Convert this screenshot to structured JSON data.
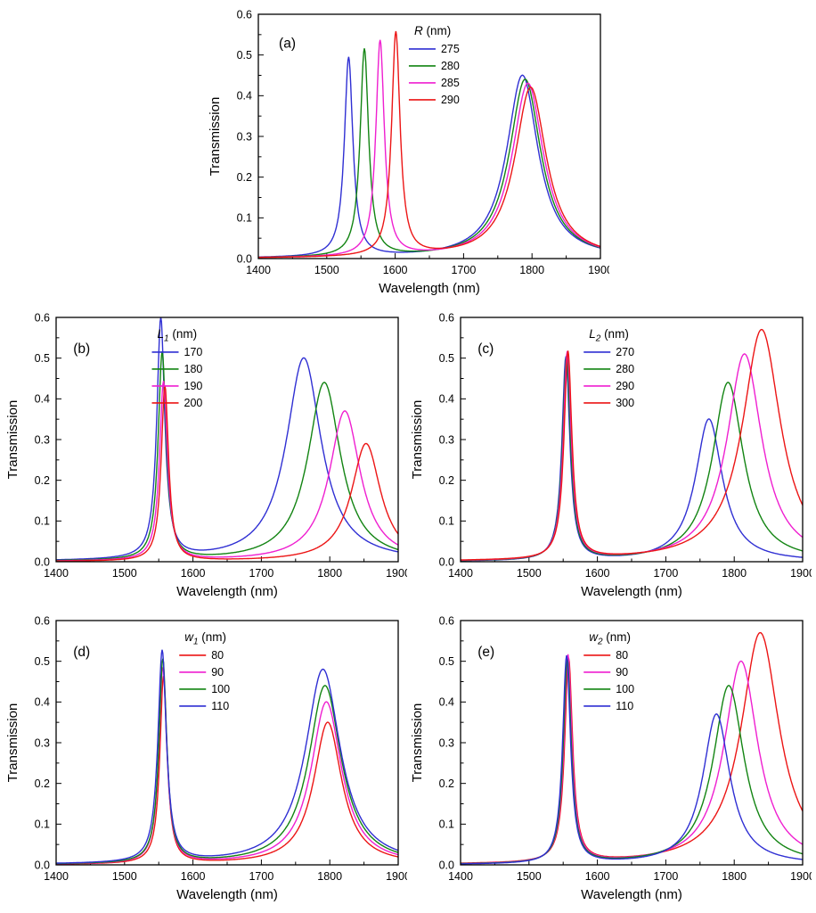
{
  "figure_name": "transmission-spectra-parameter-sweep",
  "axes_common": {
    "xlabel": "Wavelength (nm)",
    "ylabel": "Transmission",
    "xlim": [
      1400,
      1900
    ],
    "ylim": [
      0,
      0.6
    ],
    "xticks": [
      1400,
      1500,
      1600,
      1700,
      1800,
      1900
    ],
    "yticks": [
      0,
      0.1,
      0.2,
      0.3,
      0.4,
      0.5,
      0.6
    ]
  },
  "chart_data": [
    {
      "type": "line",
      "panel": "(a)",
      "xlabel": "Wavelength (nm)",
      "ylabel": "Transmission",
      "xlim": [
        1400,
        1900
      ],
      "ylim": [
        0,
        0.6
      ],
      "xticks": [
        1400,
        1500,
        1600,
        1700,
        1800,
        1900
      ],
      "yticks": [
        0,
        0.1,
        0.2,
        0.3,
        0.4,
        0.5,
        0.6
      ],
      "legend": {
        "symbol": "R",
        "sub": "",
        "unit": " (nm)",
        "x": 0.44,
        "y": 0.04
      },
      "tag": {
        "x": 0.06,
        "y": 0.1
      },
      "series": [
        {
          "label": "275",
          "color": "#2f2fd3",
          "peaks": [
            {
              "center": 1532,
              "height": 0.49,
              "fwhm": 15
            },
            {
              "center": 1786,
              "height": 0.45,
              "fwhm": 56
            }
          ]
        },
        {
          "label": "280",
          "color": "#128412",
          "peaks": [
            {
              "center": 1555,
              "height": 0.51,
              "fwhm": 15
            },
            {
              "center": 1790,
              "height": 0.44,
              "fwhm": 56
            }
          ]
        },
        {
          "label": "285",
          "color": "#ef1fd0",
          "peaks": [
            {
              "center": 1578,
              "height": 0.53,
              "fwhm": 15
            },
            {
              "center": 1794,
              "height": 0.43,
              "fwhm": 56
            }
          ]
        },
        {
          "label": "290",
          "color": "#ec1515",
          "peaks": [
            {
              "center": 1601,
              "height": 0.55,
              "fwhm": 15
            },
            {
              "center": 1798,
              "height": 0.42,
              "fwhm": 56
            }
          ]
        }
      ]
    },
    {
      "type": "line",
      "panel": "(b)",
      "xlabel": "Wavelength (nm)",
      "ylabel": "Transmission",
      "xlim": [
        1400,
        1900
      ],
      "ylim": [
        0,
        0.6
      ],
      "xticks": [
        1400,
        1500,
        1600,
        1700,
        1800,
        1900
      ],
      "yticks": [
        0,
        0.1,
        0.2,
        0.3,
        0.4,
        0.5,
        0.6
      ],
      "legend": {
        "symbol": "L",
        "sub": "1",
        "unit": " (nm)",
        "x": 0.28,
        "y": 0.04
      },
      "tag": {
        "x": 0.05,
        "y": 0.11
      },
      "series": [
        {
          "label": "170",
          "color": "#2f2fd3",
          "peaks": [
            {
              "center": 1553,
              "height": 0.59,
              "fwhm": 14
            },
            {
              "center": 1762,
              "height": 0.5,
              "fwhm": 62
            }
          ]
        },
        {
          "label": "180",
          "color": "#128412",
          "peaks": [
            {
              "center": 1555,
              "height": 0.51,
              "fwhm": 14
            },
            {
              "center": 1792,
              "height": 0.44,
              "fwhm": 58
            }
          ]
        },
        {
          "label": "190",
          "color": "#ef1fd0",
          "peaks": [
            {
              "center": 1557,
              "height": 0.44,
              "fwhm": 14
            },
            {
              "center": 1822,
              "height": 0.37,
              "fwhm": 55
            }
          ]
        },
        {
          "label": "200",
          "color": "#ec1515",
          "peaks": [
            {
              "center": 1559,
              "height": 0.43,
              "fwhm": 13
            },
            {
              "center": 1853,
              "height": 0.29,
              "fwhm": 52
            }
          ]
        }
      ]
    },
    {
      "type": "line",
      "panel": "(c)",
      "xlabel": "Wavelength (nm)",
      "ylabel": "Transmission",
      "xlim": [
        1400,
        1900
      ],
      "ylim": [
        0,
        0.6
      ],
      "xticks": [
        1400,
        1500,
        1600,
        1700,
        1800,
        1900
      ],
      "yticks": [
        0,
        0.1,
        0.2,
        0.3,
        0.4,
        0.5,
        0.6
      ],
      "legend": {
        "symbol": "L",
        "sub": "2",
        "unit": " (nm)",
        "x": 0.36,
        "y": 0.04
      },
      "tag": {
        "x": 0.05,
        "y": 0.11
      },
      "series": [
        {
          "label": "270",
          "color": "#2f2fd3",
          "peaks": [
            {
              "center": 1554,
              "height": 0.5,
              "fwhm": 14
            },
            {
              "center": 1763,
              "height": 0.35,
              "fwhm": 48
            }
          ]
        },
        {
          "label": "280",
          "color": "#128412",
          "peaks": [
            {
              "center": 1555,
              "height": 0.5,
              "fwhm": 14
            },
            {
              "center": 1791,
              "height": 0.44,
              "fwhm": 55
            }
          ]
        },
        {
          "label": "290",
          "color": "#ef1fd0",
          "peaks": [
            {
              "center": 1556,
              "height": 0.51,
              "fwhm": 14
            },
            {
              "center": 1815,
              "height": 0.51,
              "fwhm": 62
            }
          ]
        },
        {
          "label": "300",
          "color": "#ec1515",
          "peaks": [
            {
              "center": 1557,
              "height": 0.51,
              "fwhm": 14
            },
            {
              "center": 1840,
              "height": 0.57,
              "fwhm": 68
            }
          ]
        }
      ]
    },
    {
      "type": "line",
      "panel": "(d)",
      "xlabel": "Wavelength (nm)",
      "ylabel": "Transmission",
      "xlim": [
        1400,
        1900
      ],
      "ylim": [
        0,
        0.6
      ],
      "xticks": [
        1400,
        1500,
        1600,
        1700,
        1800,
        1900
      ],
      "yticks": [
        0,
        0.1,
        0.2,
        0.3,
        0.4,
        0.5,
        0.6
      ],
      "legend": {
        "symbol": "w",
        "sub": "1",
        "unit": " (nm)",
        "x": 0.36,
        "y": 0.04
      },
      "tag": {
        "x": 0.05,
        "y": 0.11
      },
      "series": [
        {
          "label": "80",
          "color": "#ec1515",
          "peaks": [
            {
              "center": 1557,
              "height": 0.46,
              "fwhm": 13
            },
            {
              "center": 1797,
              "height": 0.35,
              "fwhm": 50
            }
          ]
        },
        {
          "label": "90",
          "color": "#ef1fd0",
          "peaks": [
            {
              "center": 1556,
              "height": 0.48,
              "fwhm": 14
            },
            {
              "center": 1795,
              "height": 0.4,
              "fwhm": 54
            }
          ]
        },
        {
          "label": "100",
          "color": "#128412",
          "peaks": [
            {
              "center": 1556,
              "height": 0.5,
              "fwhm": 14
            },
            {
              "center": 1793,
              "height": 0.44,
              "fwhm": 58
            }
          ]
        },
        {
          "label": "110",
          "color": "#2f2fd3",
          "peaks": [
            {
              "center": 1555,
              "height": 0.52,
              "fwhm": 15
            },
            {
              "center": 1790,
              "height": 0.48,
              "fwhm": 62
            }
          ]
        }
      ]
    },
    {
      "type": "line",
      "panel": "(e)",
      "xlabel": "Wavelength (nm)",
      "ylabel": "Transmission",
      "xlim": [
        1400,
        1900
      ],
      "ylim": [
        0,
        0.6
      ],
      "xticks": [
        1400,
        1500,
        1600,
        1700,
        1800,
        1900
      ],
      "yticks": [
        0,
        0.1,
        0.2,
        0.3,
        0.4,
        0.5,
        0.6
      ],
      "legend": {
        "symbol": "w",
        "sub": "2",
        "unit": " (nm)",
        "x": 0.36,
        "y": 0.04
      },
      "tag": {
        "x": 0.05,
        "y": 0.11
      },
      "series": [
        {
          "label": "80",
          "color": "#ec1515",
          "peaks": [
            {
              "center": 1558,
              "height": 0.5,
              "fwhm": 14
            },
            {
              "center": 1838,
              "height": 0.57,
              "fwhm": 68
            }
          ]
        },
        {
          "label": "90",
          "color": "#ef1fd0",
          "peaks": [
            {
              "center": 1557,
              "height": 0.51,
              "fwhm": 14
            },
            {
              "center": 1810,
              "height": 0.5,
              "fwhm": 60
            }
          ]
        },
        {
          "label": "100",
          "color": "#128412",
          "peaks": [
            {
              "center": 1556,
              "height": 0.5,
              "fwhm": 14
            },
            {
              "center": 1792,
              "height": 0.44,
              "fwhm": 55
            }
          ]
        },
        {
          "label": "110",
          "color": "#2f2fd3",
          "peaks": [
            {
              "center": 1555,
              "height": 0.51,
              "fwhm": 14
            },
            {
              "center": 1774,
              "height": 0.37,
              "fwhm": 48
            }
          ]
        }
      ]
    }
  ]
}
